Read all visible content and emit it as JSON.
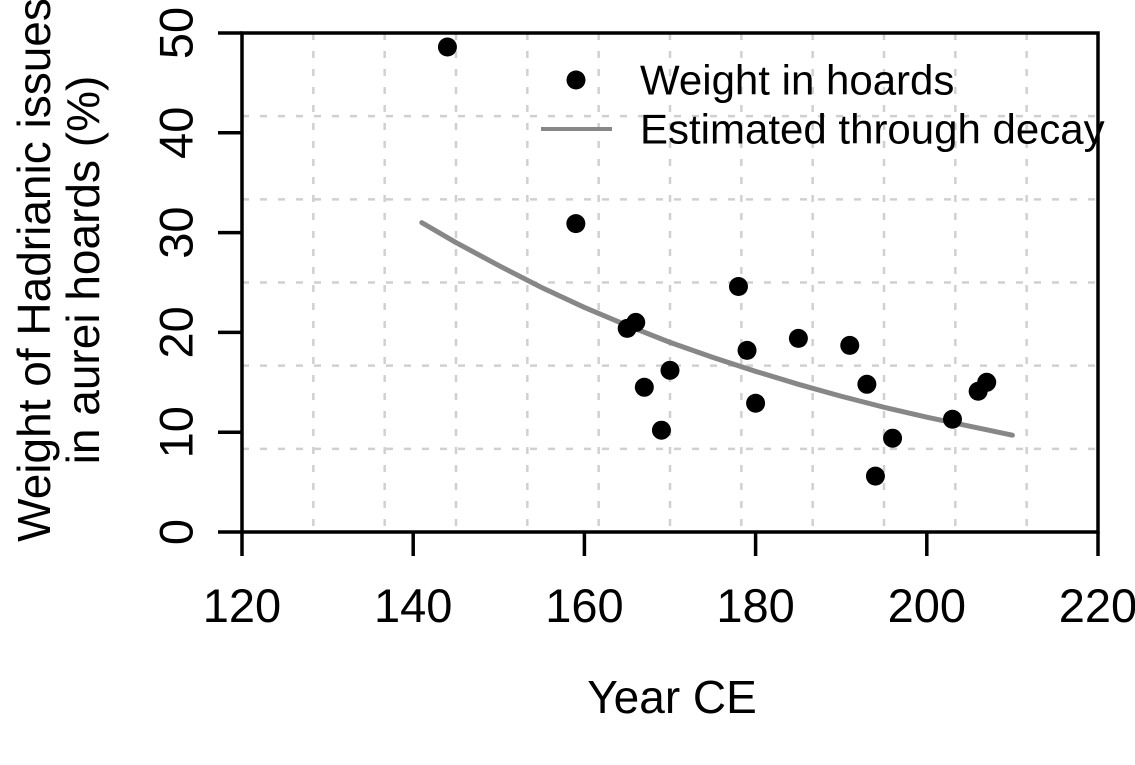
{
  "figure": {
    "background": "#ffffff",
    "text_color": "#000000"
  },
  "chart_data": {
    "type": "scatter",
    "title": "",
    "xlabel": "Year CE",
    "ylabel_lines": [
      "Weight of Hadrianic issues",
      "in aurei hoards (%)"
    ],
    "xlim": [
      120,
      220
    ],
    "ylim": [
      0,
      50
    ],
    "x_ticks": [
      120,
      140,
      160,
      180,
      200,
      220
    ],
    "y_ticks": [
      0,
      10,
      20,
      30,
      40,
      50
    ],
    "grid": {
      "on": true,
      "style": "dashed",
      "color": "#d0d0d0",
      "x_divisions": 12,
      "y_divisions": 6
    },
    "legend": {
      "position": "top-center",
      "entries": [
        {
          "label": "Weight in hoards",
          "marker": "point",
          "color": "#000000"
        },
        {
          "label": "Estimated through decay",
          "marker": "line",
          "color": "#878787"
        }
      ]
    },
    "series": [
      {
        "name": "Weight in hoards",
        "type": "scatter",
        "color": "#000000",
        "points": [
          {
            "x": 144,
            "y": 48.6
          },
          {
            "x": 159,
            "y": 30.9
          },
          {
            "x": 165,
            "y": 20.4
          },
          {
            "x": 166,
            "y": 21.0
          },
          {
            "x": 167,
            "y": 14.5
          },
          {
            "x": 169,
            "y": 10.2
          },
          {
            "x": 170,
            "y": 16.2
          },
          {
            "x": 178,
            "y": 24.6
          },
          {
            "x": 179,
            "y": 18.2
          },
          {
            "x": 180,
            "y": 12.9
          },
          {
            "x": 185,
            "y": 19.4
          },
          {
            "x": 191,
            "y": 18.7
          },
          {
            "x": 193,
            "y": 14.8
          },
          {
            "x": 194,
            "y": 5.6
          },
          {
            "x": 196,
            "y": 9.4
          },
          {
            "x": 203,
            "y": 11.3
          },
          {
            "x": 206,
            "y": 14.1
          },
          {
            "x": 207,
            "y": 15.0
          }
        ]
      },
      {
        "name": "Estimated through decay",
        "type": "line",
        "color": "#878787",
        "points": [
          {
            "x": 141,
            "y": 31.0
          },
          {
            "x": 145,
            "y": 29.0
          },
          {
            "x": 150,
            "y": 26.7
          },
          {
            "x": 155,
            "y": 24.5
          },
          {
            "x": 160,
            "y": 22.5
          },
          {
            "x": 165,
            "y": 20.7
          },
          {
            "x": 170,
            "y": 19.0
          },
          {
            "x": 175,
            "y": 17.5
          },
          {
            "x": 180,
            "y": 16.1
          },
          {
            "x": 185,
            "y": 14.8
          },
          {
            "x": 190,
            "y": 13.6
          },
          {
            "x": 195,
            "y": 12.5
          },
          {
            "x": 200,
            "y": 11.5
          },
          {
            "x": 205,
            "y": 10.6
          },
          {
            "x": 210,
            "y": 9.7
          }
        ]
      }
    ]
  }
}
